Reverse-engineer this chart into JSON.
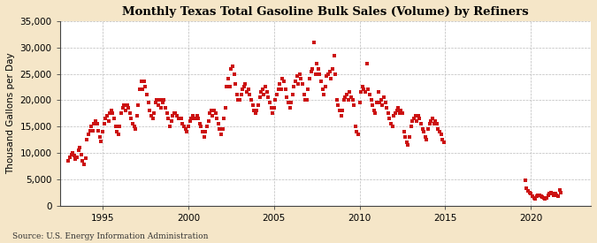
{
  "title": "Monthly Texas Total Gasoline Bulk Sales (Volume) by Refiners",
  "ylabel": "Thousand Gallons per Day",
  "source": "Source: U.S. Energy Information Administration",
  "background_color": "#f5e6c8",
  "plot_bg_color": "#ffffff",
  "marker_color": "#cc1111",
  "ylim": [
    0,
    35000
  ],
  "yticks": [
    0,
    5000,
    10000,
    15000,
    20000,
    25000,
    30000,
    35000
  ],
  "ytick_labels": [
    "0",
    "5,000",
    "10,000",
    "15,000",
    "20,000",
    "25,000",
    "30,000",
    "35,000"
  ],
  "xticks": [
    1995,
    2000,
    2005,
    2010,
    2015,
    2020
  ],
  "xlim_start": 1992.5,
  "xlim_end": 2023.5,
  "data": [
    [
      1993.0,
      8500
    ],
    [
      1993.083,
      9200
    ],
    [
      1993.167,
      9600
    ],
    [
      1993.25,
      10000
    ],
    [
      1993.333,
      9400
    ],
    [
      1993.417,
      8800
    ],
    [
      1993.5,
      9200
    ],
    [
      1993.583,
      10500
    ],
    [
      1993.667,
      11000
    ],
    [
      1993.75,
      9600
    ],
    [
      1993.833,
      8500
    ],
    [
      1993.917,
      7800
    ],
    [
      1994.0,
      9000
    ],
    [
      1994.083,
      12500
    ],
    [
      1994.167,
      13500
    ],
    [
      1994.25,
      14200
    ],
    [
      1994.333,
      15000
    ],
    [
      1994.417,
      14200
    ],
    [
      1994.5,
      15500
    ],
    [
      1994.583,
      16000
    ],
    [
      1994.667,
      15600
    ],
    [
      1994.75,
      14200
    ],
    [
      1994.833,
      13000
    ],
    [
      1994.917,
      12200
    ],
    [
      1995.0,
      14000
    ],
    [
      1995.083,
      15500
    ],
    [
      1995.167,
      16500
    ],
    [
      1995.25,
      17000
    ],
    [
      1995.333,
      16000
    ],
    [
      1995.417,
      17500
    ],
    [
      1995.5,
      18000
    ],
    [
      1995.583,
      17500
    ],
    [
      1995.667,
      16500
    ],
    [
      1995.75,
      15000
    ],
    [
      1995.833,
      14000
    ],
    [
      1995.917,
      13500
    ],
    [
      1996.0,
      15000
    ],
    [
      1996.083,
      17500
    ],
    [
      1996.167,
      18500
    ],
    [
      1996.25,
      19000
    ],
    [
      1996.333,
      18000
    ],
    [
      1996.417,
      19000
    ],
    [
      1996.5,
      18500
    ],
    [
      1996.583,
      17500
    ],
    [
      1996.667,
      16500
    ],
    [
      1996.75,
      15500
    ],
    [
      1996.833,
      15000
    ],
    [
      1996.917,
      14500
    ],
    [
      1997.0,
      17000
    ],
    [
      1997.083,
      19000
    ],
    [
      1997.167,
      22000
    ],
    [
      1997.25,
      23500
    ],
    [
      1997.333,
      22000
    ],
    [
      1997.417,
      23500
    ],
    [
      1997.5,
      22500
    ],
    [
      1997.583,
      21000
    ],
    [
      1997.667,
      19500
    ],
    [
      1997.75,
      18000
    ],
    [
      1997.833,
      17000
    ],
    [
      1997.917,
      16500
    ],
    [
      1998.0,
      17500
    ],
    [
      1998.083,
      19500
    ],
    [
      1998.167,
      20000
    ],
    [
      1998.25,
      19000
    ],
    [
      1998.333,
      20000
    ],
    [
      1998.417,
      18500
    ],
    [
      1998.5,
      19500
    ],
    [
      1998.583,
      20000
    ],
    [
      1998.667,
      18500
    ],
    [
      1998.75,
      17500
    ],
    [
      1998.833,
      16500
    ],
    [
      1998.917,
      15000
    ],
    [
      1999.0,
      16000
    ],
    [
      1999.083,
      17000
    ],
    [
      1999.167,
      17500
    ],
    [
      1999.25,
      17500
    ],
    [
      1999.333,
      17000
    ],
    [
      1999.417,
      16500
    ],
    [
      1999.5,
      16500
    ],
    [
      1999.583,
      16500
    ],
    [
      1999.667,
      15500
    ],
    [
      1999.75,
      15000
    ],
    [
      1999.833,
      14500
    ],
    [
      1999.917,
      14000
    ],
    [
      2000.0,
      15000
    ],
    [
      2000.083,
      16000
    ],
    [
      2000.167,
      16500
    ],
    [
      2000.25,
      17000
    ],
    [
      2000.333,
      16500
    ],
    [
      2000.417,
      16500
    ],
    [
      2000.5,
      17000
    ],
    [
      2000.583,
      16500
    ],
    [
      2000.667,
      15500
    ],
    [
      2000.75,
      15000
    ],
    [
      2000.833,
      14000
    ],
    [
      2000.917,
      13000
    ],
    [
      2001.0,
      14000
    ],
    [
      2001.083,
      15000
    ],
    [
      2001.167,
      16000
    ],
    [
      2001.25,
      17500
    ],
    [
      2001.333,
      18000
    ],
    [
      2001.417,
      17000
    ],
    [
      2001.5,
      18000
    ],
    [
      2001.583,
      17500
    ],
    [
      2001.667,
      16500
    ],
    [
      2001.75,
      15500
    ],
    [
      2001.833,
      14500
    ],
    [
      2001.917,
      13500
    ],
    [
      2002.0,
      14500
    ],
    [
      2002.083,
      16500
    ],
    [
      2002.167,
      18500
    ],
    [
      2002.25,
      22500
    ],
    [
      2002.333,
      24000
    ],
    [
      2002.417,
      22500
    ],
    [
      2002.5,
      26000
    ],
    [
      2002.583,
      26500
    ],
    [
      2002.667,
      25000
    ],
    [
      2002.75,
      23000
    ],
    [
      2002.833,
      21000
    ],
    [
      2002.917,
      20000
    ],
    [
      2003.0,
      20000
    ],
    [
      2003.083,
      21000
    ],
    [
      2003.167,
      22000
    ],
    [
      2003.25,
      22500
    ],
    [
      2003.333,
      23000
    ],
    [
      2003.417,
      21500
    ],
    [
      2003.5,
      22000
    ],
    [
      2003.583,
      21000
    ],
    [
      2003.667,
      20000
    ],
    [
      2003.75,
      19000
    ],
    [
      2003.833,
      18000
    ],
    [
      2003.917,
      17500
    ],
    [
      2004.0,
      18000
    ],
    [
      2004.083,
      19000
    ],
    [
      2004.167,
      20500
    ],
    [
      2004.25,
      21500
    ],
    [
      2004.333,
      22000
    ],
    [
      2004.417,
      21000
    ],
    [
      2004.5,
      22500
    ],
    [
      2004.583,
      21500
    ],
    [
      2004.667,
      20500
    ],
    [
      2004.75,
      19500
    ],
    [
      2004.833,
      18500
    ],
    [
      2004.917,
      17500
    ],
    [
      2005.0,
      18500
    ],
    [
      2005.083,
      20000
    ],
    [
      2005.167,
      21000
    ],
    [
      2005.25,
      22000
    ],
    [
      2005.333,
      23000
    ],
    [
      2005.417,
      22000
    ],
    [
      2005.5,
      24000
    ],
    [
      2005.583,
      23500
    ],
    [
      2005.667,
      22000
    ],
    [
      2005.75,
      20500
    ],
    [
      2005.833,
      19500
    ],
    [
      2005.917,
      18500
    ],
    [
      2006.0,
      19500
    ],
    [
      2006.083,
      21000
    ],
    [
      2006.167,
      22500
    ],
    [
      2006.25,
      23500
    ],
    [
      2006.333,
      24500
    ],
    [
      2006.417,
      23000
    ],
    [
      2006.5,
      25000
    ],
    [
      2006.583,
      24000
    ],
    [
      2006.667,
      23000
    ],
    [
      2006.75,
      21000
    ],
    [
      2006.833,
      20000
    ],
    [
      2006.917,
      20000
    ],
    [
      2007.0,
      22000
    ],
    [
      2007.083,
      24000
    ],
    [
      2007.167,
      25500
    ],
    [
      2007.25,
      26000
    ],
    [
      2007.333,
      31000
    ],
    [
      2007.417,
      25000
    ],
    [
      2007.5,
      27000
    ],
    [
      2007.583,
      26000
    ],
    [
      2007.667,
      25000
    ],
    [
      2007.75,
      23500
    ],
    [
      2007.833,
      22000
    ],
    [
      2007.917,
      21000
    ],
    [
      2008.0,
      22500
    ],
    [
      2008.083,
      24500
    ],
    [
      2008.167,
      25000
    ],
    [
      2008.25,
      25500
    ],
    [
      2008.333,
      24000
    ],
    [
      2008.417,
      26000
    ],
    [
      2008.5,
      28500
    ],
    [
      2008.583,
      25000
    ],
    [
      2008.667,
      20000
    ],
    [
      2008.75,
      19000
    ],
    [
      2008.833,
      18000
    ],
    [
      2008.917,
      17000
    ],
    [
      2009.0,
      18000
    ],
    [
      2009.083,
      20000
    ],
    [
      2009.167,
      20500
    ],
    [
      2009.25,
      21000
    ],
    [
      2009.333,
      20000
    ],
    [
      2009.417,
      21500
    ],
    [
      2009.5,
      20500
    ],
    [
      2009.583,
      20000
    ],
    [
      2009.667,
      19000
    ],
    [
      2009.75,
      15000
    ],
    [
      2009.833,
      14000
    ],
    [
      2009.917,
      13500
    ],
    [
      2010.0,
      19500
    ],
    [
      2010.083,
      21500
    ],
    [
      2010.167,
      22500
    ],
    [
      2010.25,
      22000
    ],
    [
      2010.333,
      21500
    ],
    [
      2010.417,
      27000
    ],
    [
      2010.5,
      22000
    ],
    [
      2010.583,
      21000
    ],
    [
      2010.667,
      20000
    ],
    [
      2010.75,
      19000
    ],
    [
      2010.833,
      18000
    ],
    [
      2010.917,
      17500
    ],
    [
      2011.0,
      19500
    ],
    [
      2011.083,
      21500
    ],
    [
      2011.167,
      19500
    ],
    [
      2011.25,
      20000
    ],
    [
      2011.333,
      19000
    ],
    [
      2011.417,
      20500
    ],
    [
      2011.5,
      19500
    ],
    [
      2011.583,
      18500
    ],
    [
      2011.667,
      17500
    ],
    [
      2011.75,
      16500
    ],
    [
      2011.833,
      15500
    ],
    [
      2011.917,
      15000
    ],
    [
      2012.0,
      17000
    ],
    [
      2012.083,
      17500
    ],
    [
      2012.167,
      18000
    ],
    [
      2012.25,
      18500
    ],
    [
      2012.333,
      17500
    ],
    [
      2012.417,
      18000
    ],
    [
      2012.5,
      17500
    ],
    [
      2012.583,
      14000
    ],
    [
      2012.667,
      13000
    ],
    [
      2012.75,
      12000
    ],
    [
      2012.833,
      11500
    ],
    [
      2012.917,
      13000
    ],
    [
      2013.0,
      15000
    ],
    [
      2013.083,
      16000
    ],
    [
      2013.167,
      16500
    ],
    [
      2013.25,
      17000
    ],
    [
      2013.333,
      16000
    ],
    [
      2013.417,
      17000
    ],
    [
      2013.5,
      16500
    ],
    [
      2013.583,
      15500
    ],
    [
      2013.667,
      14500
    ],
    [
      2013.75,
      14000
    ],
    [
      2013.833,
      13000
    ],
    [
      2013.917,
      12500
    ],
    [
      2014.0,
      14500
    ],
    [
      2014.083,
      15500
    ],
    [
      2014.167,
      16000
    ],
    [
      2014.25,
      16500
    ],
    [
      2014.333,
      15500
    ],
    [
      2014.417,
      16000
    ],
    [
      2014.5,
      15500
    ],
    [
      2014.583,
      14500
    ],
    [
      2014.667,
      14000
    ],
    [
      2014.75,
      13500
    ],
    [
      2014.833,
      12500
    ],
    [
      2014.917,
      12000
    ],
    [
      2019.667,
      4800
    ],
    [
      2019.75,
      3200
    ],
    [
      2019.833,
      2800
    ],
    [
      2019.917,
      2500
    ],
    [
      2020.0,
      2200
    ],
    [
      2020.083,
      1800
    ],
    [
      2020.167,
      1500
    ],
    [
      2020.25,
      1200
    ],
    [
      2020.333,
      1800
    ],
    [
      2020.417,
      2000
    ],
    [
      2020.5,
      2000
    ],
    [
      2020.583,
      1800
    ],
    [
      2020.667,
      1600
    ],
    [
      2020.75,
      1400
    ],
    [
      2020.833,
      1200
    ],
    [
      2020.917,
      1500
    ],
    [
      2021.0,
      2000
    ],
    [
      2021.083,
      2200
    ],
    [
      2021.167,
      2500
    ],
    [
      2021.25,
      2200
    ],
    [
      2021.333,
      2000
    ],
    [
      2021.417,
      2200
    ],
    [
      2021.5,
      2000
    ],
    [
      2021.583,
      1800
    ],
    [
      2021.667,
      3000
    ],
    [
      2021.75,
      2500
    ]
  ]
}
